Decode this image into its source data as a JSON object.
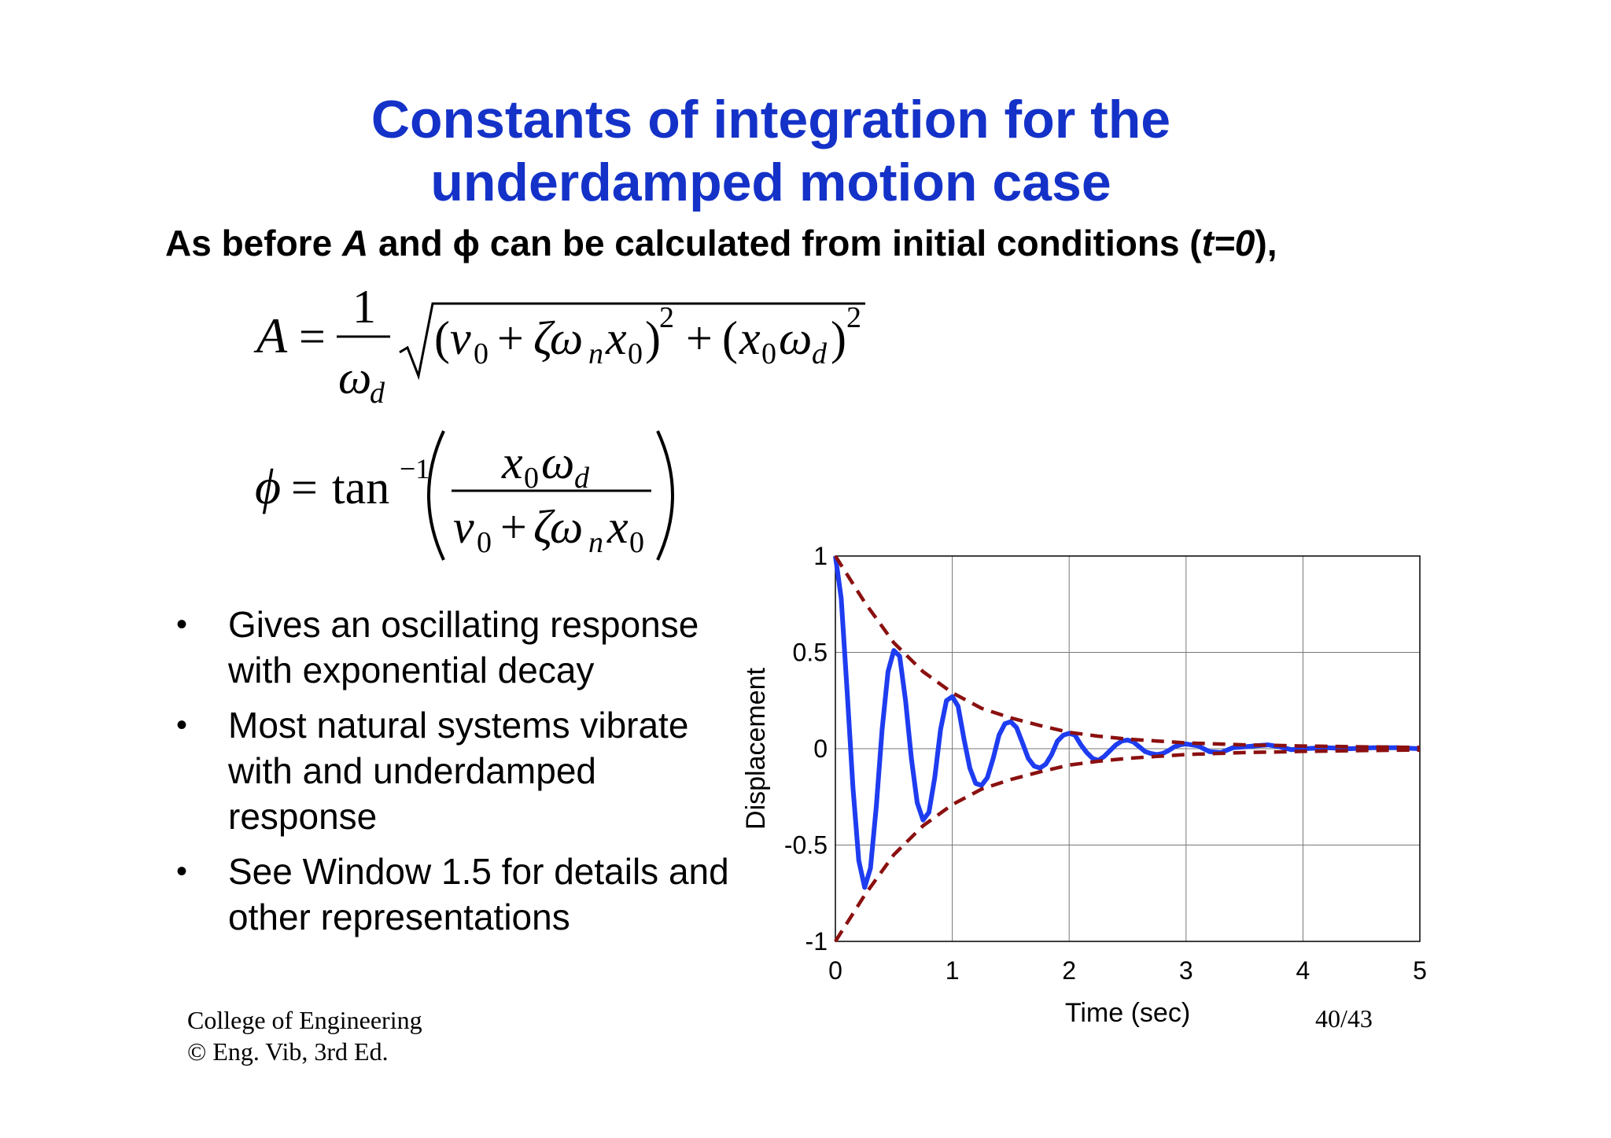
{
  "slide": {
    "title_line1": "Constants of integration for the",
    "title_line2": "underdamped motion case",
    "subtitle": {
      "part1": "As before ",
      "var_a": "A",
      "part2": " and ",
      "var_phi": "ϕ",
      "part3": "  can be calculated from initial conditions (",
      "cond": "t=0",
      "part4": "),"
    },
    "bullets": [
      "Gives an oscillating response with exponential decay",
      "Most natural systems vibrate with and underdamped response",
      "See Window 1.5 for details and other representations"
    ],
    "footer_line1": "College of Engineering",
    "footer_line2": "© Eng. Vib, 3rd Ed.",
    "page_number": "40/43"
  },
  "colors": {
    "title": "#1432c8",
    "response_line": "#1e3cf0",
    "envelope": "#8b1010"
  },
  "chart_data": {
    "type": "line",
    "xlabel": "Time (sec)",
    "ylabel": "Displacement",
    "xlim": [
      0,
      5
    ],
    "ylim": [
      -1,
      1
    ],
    "x_ticks": [
      "0",
      "1",
      "2",
      "3",
      "4",
      "5"
    ],
    "y_ticks": [
      "1",
      "0.5",
      "0",
      "-0.5",
      "-1"
    ],
    "grid": true,
    "series": [
      {
        "style": "solid",
        "x": [
          0,
          0.05,
          0.1,
          0.15,
          0.2,
          0.25,
          0.3,
          0.35,
          0.4,
          0.45,
          0.5,
          0.55,
          0.6,
          0.65,
          0.7,
          0.75,
          0.8,
          0.85,
          0.9,
          0.95,
          1.0,
          1.05,
          1.1,
          1.15,
          1.2,
          1.25,
          1.3,
          1.35,
          1.4,
          1.45,
          1.5,
          1.55,
          1.6,
          1.65,
          1.7,
          1.75,
          1.8,
          1.85,
          1.9,
          1.95,
          2.0,
          2.05,
          2.1,
          2.15,
          2.2,
          2.25,
          2.3,
          2.35,
          2.4,
          2.45,
          2.5,
          2.55,
          2.6,
          2.65,
          2.7,
          2.75,
          2.8,
          2.85,
          2.9,
          2.95,
          3.0,
          3.1,
          3.2,
          3.3,
          3.4,
          3.5,
          3.6,
          3.7,
          3.8,
          3.9,
          4.0,
          4.2,
          4.4,
          4.6,
          4.8,
          5.0
        ],
        "y": [
          1.0,
          0.78,
          0.3,
          -0.2,
          -0.58,
          -0.72,
          -0.62,
          -0.3,
          0.1,
          0.4,
          0.51,
          0.48,
          0.25,
          -0.05,
          -0.28,
          -0.37,
          -0.33,
          -0.15,
          0.1,
          0.25,
          0.27,
          0.22,
          0.05,
          -0.1,
          -0.18,
          -0.19,
          -0.15,
          -0.05,
          0.07,
          0.13,
          0.14,
          0.11,
          0.03,
          -0.05,
          -0.09,
          -0.1,
          -0.08,
          -0.03,
          0.04,
          0.07,
          0.08,
          0.07,
          0.02,
          -0.02,
          -0.05,
          -0.06,
          -0.04,
          -0.01,
          0.02,
          0.04,
          0.045,
          0.035,
          0.01,
          -0.015,
          -0.025,
          -0.03,
          -0.025,
          -0.01,
          0.01,
          0.02,
          0.025,
          0.015,
          -0.015,
          -0.02,
          0.005,
          0.01,
          0.015,
          0.02,
          0.01,
          -0.005,
          0.0,
          0.005,
          0.0,
          0.005,
          0.005,
          0.0
        ]
      },
      {
        "style": "dashed",
        "x": [
          0,
          0.25,
          0.5,
          0.75,
          1.0,
          1.25,
          1.5,
          1.75,
          2.0,
          2.25,
          2.5,
          2.75,
          3.0,
          3.25,
          3.5,
          3.75,
          4.0,
          4.25,
          4.5,
          4.75,
          5.0
        ],
        "y": [
          1.0,
          0.76,
          0.55,
          0.4,
          0.29,
          0.21,
          0.16,
          0.12,
          0.085,
          0.065,
          0.05,
          0.04,
          0.03,
          0.025,
          0.02,
          0.017,
          0.014,
          0.012,
          0.01,
          0.008,
          0.007
        ]
      },
      {
        "style": "dashed",
        "x": [
          0,
          0.25,
          0.5,
          0.75,
          1.0,
          1.25,
          1.5,
          1.75,
          2.0,
          2.25,
          2.5,
          2.75,
          3.0,
          3.25,
          3.5,
          3.75,
          4.0,
          4.25,
          4.5,
          4.75,
          5.0
        ],
        "y": [
          -1.0,
          -0.76,
          -0.55,
          -0.4,
          -0.29,
          -0.21,
          -0.16,
          -0.12,
          -0.085,
          -0.065,
          -0.05,
          -0.04,
          -0.03,
          -0.025,
          -0.02,
          -0.017,
          -0.014,
          -0.012,
          -0.01,
          -0.008,
          -0.007
        ]
      }
    ]
  }
}
